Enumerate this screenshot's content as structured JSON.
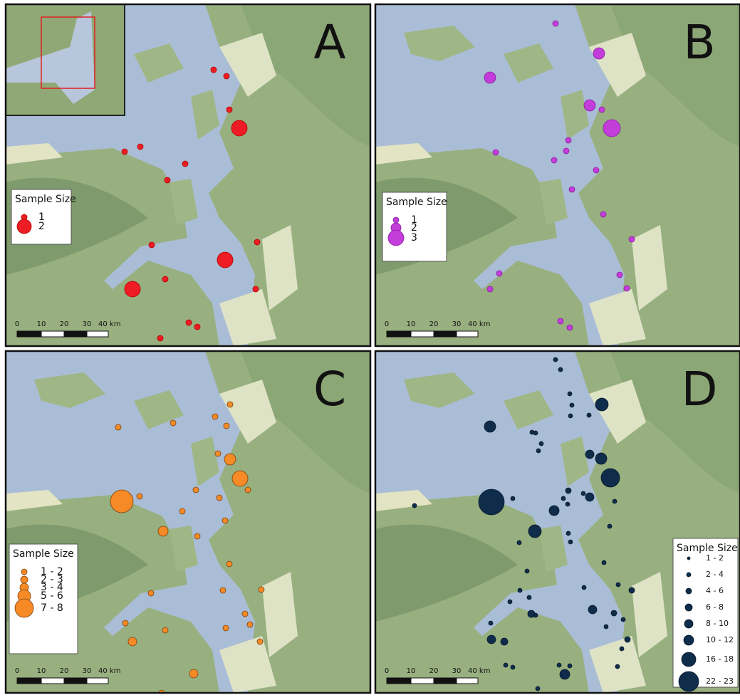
{
  "panels": [
    {
      "label": "A",
      "legend": {
        "title": "Sample Size",
        "items": [
          "1",
          "2"
        ]
      },
      "scale": [
        "0",
        "10",
        "20",
        "30",
        "40 km"
      ]
    },
    {
      "label": "B",
      "legend": {
        "title": "Sample Size",
        "items": [
          "1",
          "2",
          "3"
        ]
      },
      "scale": [
        "0",
        "10",
        "20",
        "30",
        "40 km"
      ]
    },
    {
      "label": "C",
      "legend": {
        "title": "Sample Size",
        "items": [
          "1 - 2",
          "2 - 3",
          "3 - 4",
          "5 - 6",
          "7 - 8"
        ]
      },
      "scale": [
        "0",
        "10",
        "20",
        "30",
        "40 km"
      ]
    },
    {
      "label": "D",
      "legend": {
        "title": "Sample Size",
        "items": [
          "1 - 2",
          "2 - 4",
          "4 - 6",
          "6 - 8",
          "8 - 10",
          "10 - 12",
          "16 - 18",
          "22 - 23"
        ]
      },
      "scale": [
        "0",
        "10",
        "20",
        "30",
        "40 km"
      ]
    }
  ]
}
